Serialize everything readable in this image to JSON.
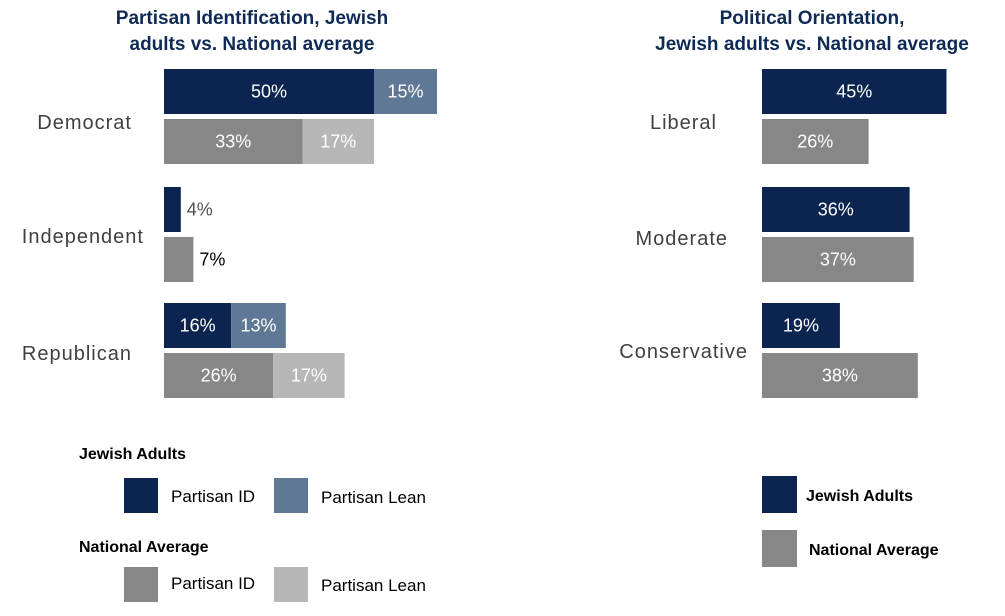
{
  "colors": {
    "jewish_id": "#0c2550",
    "jewish_lean": "#5f7896",
    "national_id": "#878787",
    "national_lean": "#b7b7b7"
  },
  "chart_data": [
    {
      "type": "bar",
      "orientation": "horizontal",
      "stacked": true,
      "title": "Partisan Identification, Jewish adults vs. National average",
      "title_lines": [
        "Partisan Identification, Jewish",
        "adults vs. National average"
      ],
      "categories": [
        "Democrat",
        "Independent",
        "Republican"
      ],
      "groups": [
        "Jewish Adults",
        "National Average"
      ],
      "series": [
        {
          "group": "Jewish Adults",
          "name": "Partisan ID",
          "values": [
            50,
            4,
            16
          ]
        },
        {
          "group": "Jewish Adults",
          "name": "Partisan Lean",
          "values": [
            15,
            null,
            13
          ]
        },
        {
          "group": "National Average",
          "name": "Partisan ID",
          "values": [
            33,
            7,
            26
          ]
        },
        {
          "group": "National Average",
          "name": "Partisan Lean",
          "values": [
            17,
            null,
            17
          ]
        }
      ],
      "data_labels": true,
      "unit": "%",
      "legend": {
        "position": "bottom",
        "groups": [
          {
            "heading": "Jewish Adults",
            "items": [
              "Partisan ID",
              "Partisan Lean"
            ]
          },
          {
            "heading": "National Average",
            "items": [
              "Partisan ID",
              "Partisan Lean"
            ]
          }
        ]
      },
      "axes_visible": false,
      "grid": false
    },
    {
      "type": "bar",
      "orientation": "horizontal",
      "title": "Political Orientation, Jewish adults vs. National average",
      "title_lines": [
        "Political Orientation,",
        "Jewish adults vs. National average"
      ],
      "categories": [
        "Liberal",
        "Moderate",
        "Conservative"
      ],
      "series": [
        {
          "name": "Jewish Adults",
          "values": [
            45,
            36,
            19
          ]
        },
        {
          "name": "National Average",
          "values": [
            26,
            37,
            38
          ]
        }
      ],
      "data_labels": true,
      "unit": "%",
      "legend": {
        "position": "bottom-right",
        "items": [
          "Jewish Adults",
          "National Average"
        ]
      },
      "axes_visible": false,
      "grid": false
    }
  ]
}
